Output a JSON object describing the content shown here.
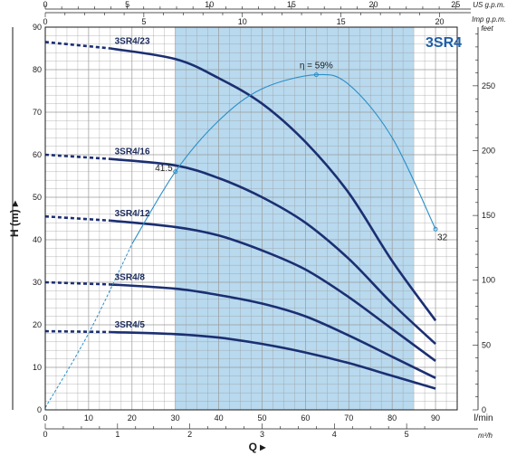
{
  "chart_data": {
    "type": "line",
    "title": "3SR4",
    "ylabel": "H (m)",
    "xlabel": "Q",
    "x_unit_main": "l/min",
    "x_unit_m3h": "m³/h",
    "x_unit_us": "US g.p.m.",
    "x_unit_imp": "Imp g.p.m.",
    "y_unit_right": "feet",
    "xlim": [
      0,
      95
    ],
    "ylim": [
      0,
      90
    ],
    "x_ticks": [
      0,
      10,
      20,
      30,
      40,
      50,
      60,
      70,
      80,
      90
    ],
    "y_ticks": [
      0,
      10,
      20,
      30,
      40,
      50,
      60,
      70,
      80,
      90
    ],
    "m3h_ticks": [
      0,
      1,
      2,
      3,
      4,
      5
    ],
    "us_gpm_ticks": [
      0,
      5,
      10,
      15,
      20,
      25
    ],
    "imp_gpm_ticks": [
      0,
      5,
      10,
      15,
      20
    ],
    "feet_ticks": [
      0,
      50,
      100,
      150,
      200,
      250
    ],
    "operating_range": [
      30,
      85
    ],
    "series": [
      {
        "name": "3SR4/23",
        "dashed_to": 15,
        "points": [
          [
            0,
            86.5
          ],
          [
            15,
            85
          ],
          [
            30,
            82.5
          ],
          [
            40,
            78
          ],
          [
            50,
            72
          ],
          [
            60,
            63
          ],
          [
            70,
            51
          ],
          [
            80,
            35
          ],
          [
            90,
            21
          ]
        ]
      },
      {
        "name": "3SR4/16",
        "dashed_to": 15,
        "points": [
          [
            0,
            60
          ],
          [
            15,
            59
          ],
          [
            30,
            57.5
          ],
          [
            40,
            54.5
          ],
          [
            50,
            50
          ],
          [
            60,
            44
          ],
          [
            70,
            35.5
          ],
          [
            80,
            25
          ],
          [
            90,
            15.5
          ]
        ]
      },
      {
        "name": "3SR4/12",
        "dashed_to": 15,
        "points": [
          [
            0,
            45.5
          ],
          [
            15,
            44.5
          ],
          [
            30,
            43
          ],
          [
            40,
            41
          ],
          [
            50,
            37.5
          ],
          [
            60,
            33
          ],
          [
            70,
            26.5
          ],
          [
            80,
            19
          ],
          [
            90,
            11.5
          ]
        ]
      },
      {
        "name": "3SR4/8",
        "dashed_to": 15,
        "points": [
          [
            0,
            30
          ],
          [
            15,
            29.5
          ],
          [
            30,
            28.5
          ],
          [
            40,
            27
          ],
          [
            50,
            25
          ],
          [
            60,
            22
          ],
          [
            70,
            17.5
          ],
          [
            80,
            12.5
          ],
          [
            90,
            7.5
          ]
        ]
      },
      {
        "name": "3SR4/5",
        "dashed_to": 15,
        "points": [
          [
            0,
            18.5
          ],
          [
            15,
            18.3
          ],
          [
            30,
            17.8
          ],
          [
            40,
            17
          ],
          [
            50,
            15.5
          ],
          [
            60,
            13.5
          ],
          [
            70,
            11
          ],
          [
            80,
            8
          ],
          [
            90,
            5
          ]
        ]
      }
    ],
    "efficiency": {
      "label": "η = 59%",
      "start_label": "41.5",
      "end_label": "32",
      "dashed_to": 20,
      "points": [
        [
          0,
          0.5
        ],
        [
          10,
          18
        ],
        [
          20,
          39
        ],
        [
          30,
          56
        ],
        [
          40,
          68
        ],
        [
          50,
          75.5
        ],
        [
          62.5,
          78.8
        ],
        [
          70,
          76.5
        ],
        [
          80,
          64
        ],
        [
          90,
          42.5
        ]
      ],
      "markers": [
        [
          30,
          56
        ],
        [
          62.5,
          78.8
        ],
        [
          90,
          42.5
        ]
      ]
    },
    "colors": {
      "curve": "#1b2f72",
      "efficiency": "#2a8fc8",
      "range_fill": "#b8d9ee",
      "grid": "#9a9a9a",
      "model": "#1f5fa8"
    }
  }
}
